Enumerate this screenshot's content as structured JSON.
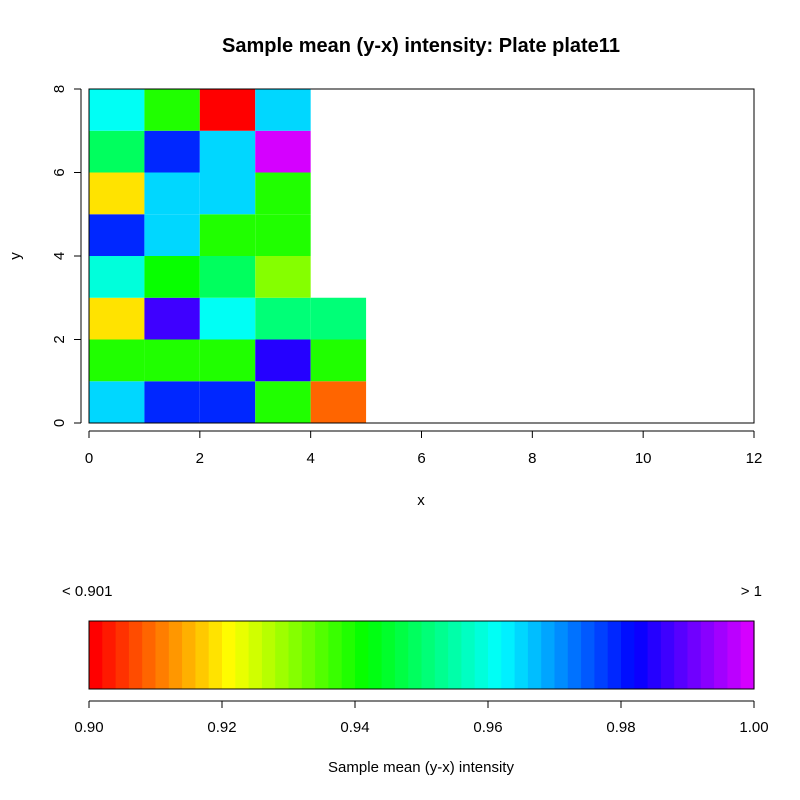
{
  "chart_data": {
    "type": "heatmap",
    "title": "Sample mean (y-x) intensity:  Plate plate11",
    "xlabel": "x",
    "ylabel": "y",
    "xlim": [
      0,
      12
    ],
    "ylim": [
      0,
      8
    ],
    "x_ticks": [
      "0",
      "2",
      "4",
      "6",
      "8",
      "10",
      "12"
    ],
    "y_ticks": [
      "0",
      "2",
      "4",
      "6",
      "8"
    ],
    "cells": [
      {
        "x": 0,
        "y": 0,
        "value": 0.966
      },
      {
        "x": 1,
        "y": 0,
        "value": 0.98
      },
      {
        "x": 2,
        "y": 0,
        "value": 0.98
      },
      {
        "x": 3,
        "y": 0,
        "value": 0.94
      },
      {
        "x": 4,
        "y": 0,
        "value": 0.908
      },
      {
        "x": 0,
        "y": 1,
        "value": 0.94
      },
      {
        "x": 1,
        "y": 1,
        "value": 0.94
      },
      {
        "x": 2,
        "y": 1,
        "value": 0.94
      },
      {
        "x": 3,
        "y": 1,
        "value": 0.985
      },
      {
        "x": 4,
        "y": 1,
        "value": 0.94
      },
      {
        "x": 0,
        "y": 2,
        "value": 0.919
      },
      {
        "x": 1,
        "y": 2,
        "value": 0.987
      },
      {
        "x": 2,
        "y": 2,
        "value": 0.962
      },
      {
        "x": 3,
        "y": 2,
        "value": 0.951
      },
      {
        "x": 4,
        "y": 2,
        "value": 0.951
      },
      {
        "x": 0,
        "y": 3,
        "value": 0.96
      },
      {
        "x": 1,
        "y": 3,
        "value": 0.941
      },
      {
        "x": 2,
        "y": 3,
        "value": 0.95
      },
      {
        "x": 3,
        "y": 3,
        "value": 0.93
      },
      {
        "x": 0,
        "y": 4,
        "value": 0.98
      },
      {
        "x": 1,
        "y": 4,
        "value": 0.966
      },
      {
        "x": 2,
        "y": 4,
        "value": 0.94
      },
      {
        "x": 3,
        "y": 4,
        "value": 0.94
      },
      {
        "x": 0,
        "y": 5,
        "value": 0.919
      },
      {
        "x": 1,
        "y": 5,
        "value": 0.966
      },
      {
        "x": 2,
        "y": 5,
        "value": 0.966
      },
      {
        "x": 3,
        "y": 5,
        "value": 0.94
      },
      {
        "x": 0,
        "y": 6,
        "value": 0.95
      },
      {
        "x": 1,
        "y": 6,
        "value": 0.98
      },
      {
        "x": 2,
        "y": 6,
        "value": 0.966
      },
      {
        "x": 3,
        "y": 6,
        "value": 1.001
      },
      {
        "x": 0,
        "y": 7,
        "value": 0.961
      },
      {
        "x": 1,
        "y": 7,
        "value": 0.94
      },
      {
        "x": 2,
        "y": 7,
        "value": 0.9
      },
      {
        "x": 3,
        "y": 7,
        "value": 0.966
      }
    ],
    "colorbar": {
      "label": "Sample mean (y-x) intensity",
      "min": 0.9,
      "max": 1.0,
      "ticks": [
        "0.90",
        "0.92",
        "0.94",
        "0.96",
        "0.98",
        "1.00"
      ],
      "low_label": "<  0.901",
      "high_label": ">  1",
      "hue_start": 0,
      "hue_end": 290,
      "steps": 50
    }
  }
}
